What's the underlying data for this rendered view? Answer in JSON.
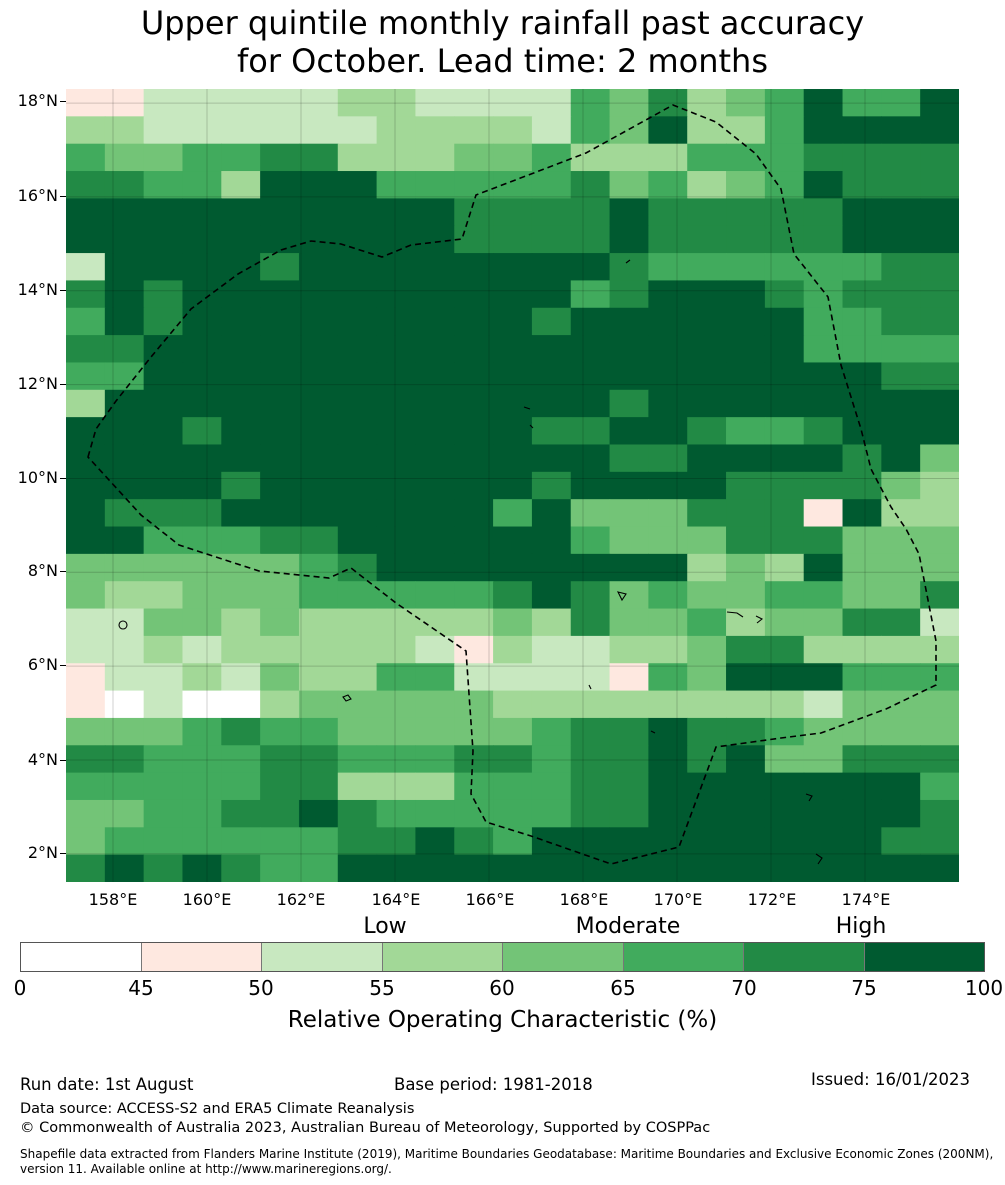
{
  "title": {
    "line1": "Upper quintile monthly rainfall past accuracy",
    "line2": "for October. Lead time: 2 months"
  },
  "map": {
    "lat_labels": [
      "18°N",
      "16°N",
      "14°N",
      "12°N",
      "10°N",
      "8°N",
      "6°N",
      "4°N",
      "2°N"
    ],
    "lon_labels": [
      "158°E",
      "160°E",
      "162°E",
      "164°E",
      "166°E",
      "168°E",
      "170°E",
      "172°E",
      "174°E"
    ],
    "extent": {
      "lon_min": 157,
      "lon_max": 176,
      "lat_min": 1.4,
      "lat_max": 18.3
    },
    "colors": [
      "#ffffff",
      "#fee8e0",
      "#c8e8c0",
      "#a2d897",
      "#73c477",
      "#41ab5d",
      "#228a45",
      "#005a30"
    ],
    "grid": [
      "11222223322225463457557",
      "33222222333325473357777",
      "54455663334453335556666",
      "66553777555556453457666",
      "77777777776666766666777",
      "77777777776666766666777",
      "27777677777777655555566",
      "67677777777775677765666",
      "57677777777767777775566",
      "66777777777777777775555",
      "55777777777777777777766",
      "37777777777777677777777",
      "77767777777766776556777",
      "77777777777777667777674",
      "77776777777767777666643",
      "76667777777574446661733",
      "77555667777775444666444",
      "44444456777777773437444",
      "43344455555676454455446",
      "22443433333436445344662",
      "22323333321322334663333",
      "12232433552222154777555",
      "10200344444333333332444",
      "44456554444456676654444",
      "66555665556656676744666",
      "55555663335556677777775",
      "44556676555556677777776",
      "45555556676577777777766",
      "67676557777777777777777"
    ],
    "cell_values": {
      "0": "0-45",
      "1": "45-50",
      "2": "50-55",
      "3": "55-60",
      "4": "60-65",
      "5": "65-70",
      "6": "70-75",
      "7": "75-100"
    }
  },
  "legend": {
    "categories": [
      "Low",
      "Moderate",
      "High"
    ],
    "ticks": [
      "0",
      "45",
      "50",
      "55",
      "60",
      "65",
      "70",
      "75",
      "100"
    ],
    "colors": [
      "#ffffff",
      "#fee8e0",
      "#c8e8c0",
      "#a2d897",
      "#73c477",
      "#41ab5d",
      "#228a45",
      "#005a30"
    ],
    "title": "Relative Operating Characteristic (%)"
  },
  "footer": {
    "run_date": "Run date: 1st August",
    "base_period": "Base period: 1981-2018",
    "issued": "Issued: 16/01/2023",
    "data_source": "Data source: ACCESS-S2 and ERA5 Climate Reanalysis",
    "copyright": "© Commonwealth of Australia 2023, Australian Bureau of Meteorology, Supported by COSPPac",
    "shapefile_line1": "Shapefile data extracted from Flanders Marine Institute (2019), Maritime Boundaries Geodatabase: Maritime Boundaries and Exclusive Economic Zones (200NM),",
    "shapefile_line2": "version 11. Available online at http://www.marineregions.org/."
  }
}
